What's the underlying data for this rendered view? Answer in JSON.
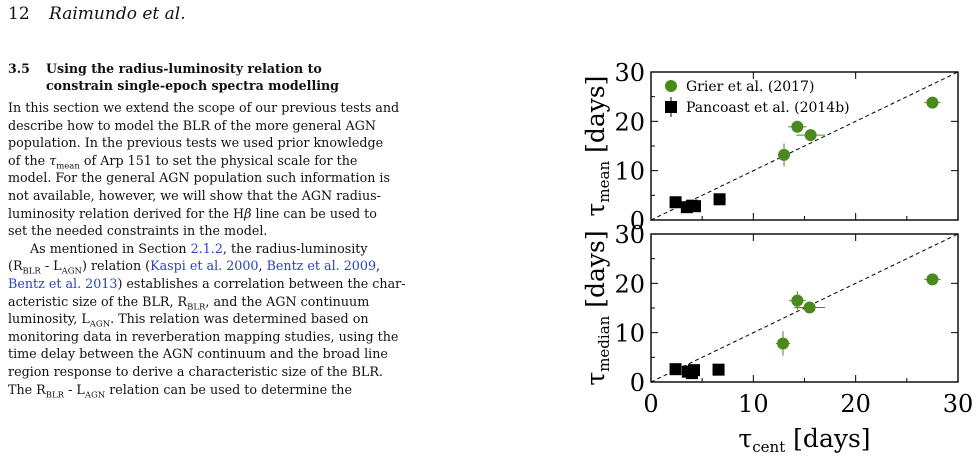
{
  "header": {
    "page_number": "12",
    "authors": "Raimundo et al."
  },
  "section": {
    "number": "3.5",
    "title_line1": "Using the radius-luminosity relation to",
    "title_line2": "constrain single-epoch spectra modelling"
  },
  "paragraph1": [
    "In this section we extend the scope of our previous tests and",
    "describe how to model the BLR of the more general AGN",
    "population. In the previous tests we used prior knowledge",
    [
      "of the ",
      {
        "i": "τ"
      },
      {
        "sub": "mean"
      },
      " of Arp 151 to set the physical scale for the"
    ],
    "model. For the general AGN population such information is",
    "not available, however, we will show that the AGN radius-",
    [
      "luminosity relation derived for the H",
      {
        "i": "β"
      },
      " line can be used to"
    ],
    "set the needed constraints in the model."
  ],
  "paragraph2": [
    [
      "As mentioned in Section ",
      {
        "c": "2.1.2"
      },
      ", the radius-luminosity"
    ],
    [
      "(R",
      {
        "sub": "BLR"
      },
      " - L",
      {
        "sub": "AGN"
      },
      ") relation (",
      {
        "c": "Kaspi et al. 2000"
      },
      ", ",
      {
        "c": "Bentz et al. 2009"
      },
      ","
    ],
    [
      {
        "c": "Bentz et al. 2013"
      },
      ") establishes a correlation between the char-"
    ],
    [
      "acteristic size of the BLR, R",
      {
        "sub": "BLR"
      },
      ", and the AGN continuum"
    ],
    [
      "luminosity, L",
      {
        "sub": "AGN"
      },
      ". This relation was determined based on"
    ],
    "monitoring data in reverberation mapping studies, using the",
    "time delay between the AGN continuum and the broad line",
    "region response to derive a characteristic size of the BLR.",
    [
      "The R",
      {
        "sub": "BLR"
      },
      " - L",
      {
        "sub": "AGN"
      },
      " relation can be used to determine the"
    ]
  ],
  "figure": {
    "legend": [
      "Grier et al. (2017)",
      "Pancoast et al. (2014b)"
    ],
    "xlabel_main": "τ",
    "xlabel_sub": "cent",
    "xlabel_unit": " [days]",
    "top_ylabel_main": "τ",
    "top_ylabel_sub": "mean",
    "top_ylabel_unit": " [days]",
    "bottom_ylabel_main": "τ",
    "bottom_ylabel_sub": "median",
    "bottom_ylabel_unit": " [days]",
    "x_ticks": [
      "0",
      "10",
      "20",
      "30"
    ],
    "top_y_ticks": [
      "0",
      "10",
      "20",
      "30"
    ],
    "bottom_y_ticks": [
      "0",
      "10",
      "20",
      "30"
    ]
  },
  "chart_data": [
    {
      "type": "scatter",
      "panel": "top",
      "xlim": [
        0,
        30
      ],
      "ylim": [
        0,
        30
      ],
      "legend_position": "top-left",
      "one_to_one_line": true,
      "series": [
        {
          "name": "Grier et al. (2017)",
          "color": "#4a8a1c",
          "marker": "circle",
          "points": [
            {
              "x": 13.0,
              "y": 13.2,
              "xerr": 0.6,
              "yerr": 2.3
            },
            {
              "x": 14.3,
              "y": 18.9,
              "xerr": 0.9,
              "yerr": 1.2
            },
            {
              "x": 15.6,
              "y": 17.2,
              "xerr": 1.4,
              "yerr": 0.8
            },
            {
              "x": 27.5,
              "y": 23.8,
              "xerr": 0.8,
              "yerr": 0.6
            }
          ]
        },
        {
          "name": "Pancoast et al. (2014b)",
          "color": "#000000",
          "marker": "square",
          "points": [
            {
              "x": 2.4,
              "y": 3.6,
              "xerr": 0.3,
              "yerr": 0.5
            },
            {
              "x": 3.5,
              "y": 2.6,
              "xerr": 0.4,
              "yerr": 0.6
            },
            {
              "x": 4.0,
              "y": 2.9,
              "xerr": 0.3,
              "yerr": 0.4
            },
            {
              "x": 4.3,
              "y": 2.8,
              "xerr": 0.3,
              "yerr": 0.4
            },
            {
              "x": 6.7,
              "y": 4.2,
              "xerr": 0.6,
              "yerr": 0.8
            }
          ]
        }
      ]
    },
    {
      "type": "scatter",
      "panel": "bottom",
      "xlim": [
        0,
        30
      ],
      "ylim": [
        0,
        30
      ],
      "one_to_one_line": true,
      "series": [
        {
          "name": "Grier et al. (2017)",
          "color": "#4a8a1c",
          "marker": "circle",
          "points": [
            {
              "x": 12.9,
              "y": 7.8,
              "xerr": 0.7,
              "yerr": 2.5
            },
            {
              "x": 14.3,
              "y": 16.5,
              "xerr": 0.8,
              "yerr": 1.9
            },
            {
              "x": 15.5,
              "y": 15.1,
              "xerr": 1.5,
              "yerr": 0.8
            },
            {
              "x": 27.5,
              "y": 20.8,
              "xerr": 0.8,
              "yerr": 0.5
            }
          ]
        },
        {
          "name": "Pancoast et al. (2014b)",
          "color": "#000000",
          "marker": "square",
          "points": [
            {
              "x": 2.4,
              "y": 2.6,
              "xerr": 0.3,
              "yerr": 0.5
            },
            {
              "x": 3.6,
              "y": 2.1,
              "xerr": 0.4,
              "yerr": 0.6
            },
            {
              "x": 4.0,
              "y": 1.8,
              "xerr": 0.3,
              "yerr": 0.5
            },
            {
              "x": 4.2,
              "y": 2.4,
              "xerr": 0.3,
              "yerr": 0.4
            },
            {
              "x": 6.6,
              "y": 2.5,
              "xerr": 0.6,
              "yerr": 0.6
            }
          ]
        }
      ]
    }
  ]
}
